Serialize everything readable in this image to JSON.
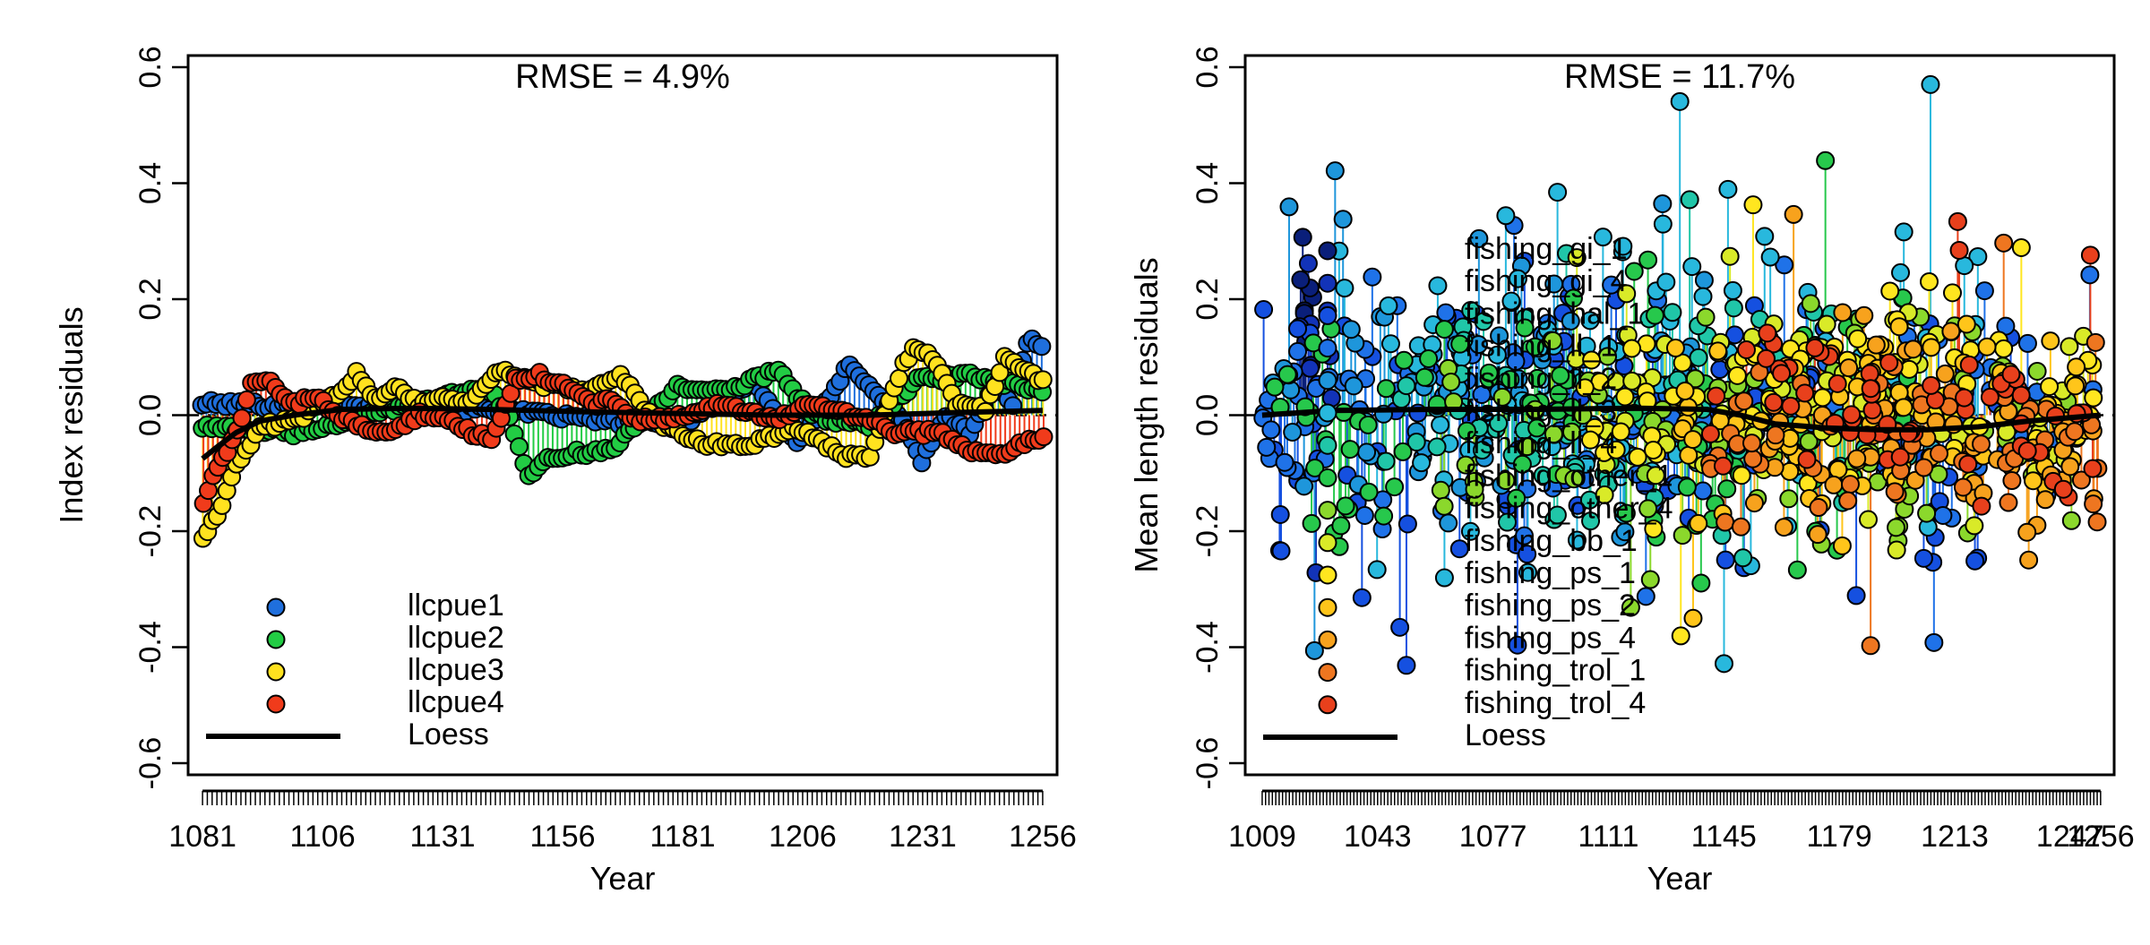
{
  "chart_data": [
    {
      "type": "scatter",
      "title": "RMSE = 4.9%",
      "xlabel": "Year",
      "ylabel": "Index residuals",
      "xlim": [
        1078,
        1259
      ],
      "ylim": [
        -0.62,
        0.62
      ],
      "x_ticks": [
        1081,
        1106,
        1131,
        1156,
        1181,
        1206,
        1231,
        1256
      ],
      "y_ticks": [
        -0.6,
        -0.4,
        -0.2,
        0.0,
        0.2,
        0.4,
        0.6
      ],
      "y_tick_labels": [
        "-0.6",
        "-0.4",
        "-0.2",
        "0.0",
        "0.2",
        "0.4",
        "0.6"
      ],
      "x_range": [
        1081,
        1256
      ],
      "minor_ticks_every": 1,
      "reference_line": 0,
      "grid": false,
      "legend_position": "bottom-left",
      "series": [
        {
          "name": "llcpue1",
          "color": "#1f6fdd",
          "keys": [
            [
              1081,
              0.02
            ],
            [
              1140,
              0.01
            ],
            [
              1180,
              -0.02
            ],
            [
              1196,
              0.06
            ],
            [
              1205,
              -0.05
            ],
            [
              1212,
              0.03
            ],
            [
              1216,
              0.09
            ],
            [
              1228,
              -0.02
            ],
            [
              1231,
              -0.08
            ],
            [
              1236,
              0.0
            ],
            [
              1241,
              -0.03
            ],
            [
              1246,
              0.05
            ],
            [
              1250,
              0.02
            ],
            [
              1253,
              0.13
            ],
            [
              1256,
              0.12
            ]
          ]
        },
        {
          "name": "llcpue2",
          "color": "#22cc44",
          "keys": [
            [
              1081,
              -0.02
            ],
            [
              1100,
              -0.03
            ],
            [
              1112,
              -0.01
            ],
            [
              1140,
              0.05
            ],
            [
              1145,
              0.0
            ],
            [
              1149,
              -0.11
            ],
            [
              1154,
              -0.07
            ],
            [
              1166,
              -0.06
            ],
            [
              1170,
              -0.03
            ],
            [
              1180,
              0.05
            ],
            [
              1190,
              0.04
            ],
            [
              1201,
              0.08
            ],
            [
              1208,
              0.0
            ],
            [
              1220,
              -0.02
            ],
            [
              1230,
              0.06
            ],
            [
              1240,
              0.07
            ],
            [
              1256,
              0.04
            ]
          ]
        },
        {
          "name": "llcpue3",
          "color": "#ffe21f",
          "keys": [
            [
              1081,
              -0.21
            ],
            [
              1084,
              -0.17
            ],
            [
              1088,
              -0.09
            ],
            [
              1093,
              -0.02
            ],
            [
              1100,
              -0.01
            ],
            [
              1108,
              0.03
            ],
            [
              1113,
              0.07
            ],
            [
              1117,
              0.03
            ],
            [
              1121,
              0.05
            ],
            [
              1126,
              0.02
            ],
            [
              1130,
              0.03
            ],
            [
              1136,
              0.02
            ],
            [
              1143,
              0.08
            ],
            [
              1148,
              0.06
            ],
            [
              1160,
              0.04
            ],
            [
              1168,
              0.07
            ],
            [
              1175,
              -0.01
            ],
            [
              1185,
              -0.05
            ],
            [
              1196,
              -0.05
            ],
            [
              1204,
              -0.02
            ],
            [
              1215,
              -0.07
            ],
            [
              1220,
              -0.07
            ],
            [
              1225,
              0.05
            ],
            [
              1229,
              0.12
            ],
            [
              1234,
              0.09
            ],
            [
              1238,
              0.02
            ],
            [
              1244,
              0.01
            ],
            [
              1248,
              0.1
            ],
            [
              1252,
              0.08
            ],
            [
              1256,
              0.06
            ]
          ]
        },
        {
          "name": "llcpue4",
          "color": "#f03b1b",
          "keys": [
            [
              1081,
              -0.15
            ],
            [
              1084,
              -0.09
            ],
            [
              1088,
              -0.03
            ],
            [
              1091,
              0.05
            ],
            [
              1095,
              0.06
            ],
            [
              1099,
              0.02
            ],
            [
              1104,
              0.03
            ],
            [
              1108,
              0.01
            ],
            [
              1113,
              -0.02
            ],
            [
              1120,
              -0.03
            ],
            [
              1126,
              0.0
            ],
            [
              1133,
              -0.01
            ],
            [
              1137,
              -0.03
            ],
            [
              1141,
              -0.04
            ],
            [
              1146,
              0.06
            ],
            [
              1151,
              0.07
            ],
            [
              1156,
              0.05
            ],
            [
              1163,
              0.02
            ],
            [
              1166,
              0.03
            ],
            [
              1170,
              -0.01
            ],
            [
              1182,
              0.0
            ],
            [
              1190,
              0.02
            ],
            [
              1200,
              -0.01
            ],
            [
              1208,
              0.02
            ],
            [
              1221,
              -0.01
            ],
            [
              1225,
              -0.03
            ],
            [
              1233,
              -0.03
            ],
            [
              1237,
              -0.04
            ],
            [
              1240,
              -0.06
            ],
            [
              1246,
              -0.07
            ],
            [
              1251,
              -0.05
            ],
            [
              1256,
              -0.04
            ]
          ]
        }
      ],
      "loess": {
        "name": "Loess",
        "color": "#000000",
        "points": [
          [
            1081,
            -0.075
          ],
          [
            1084,
            -0.055
          ],
          [
            1088,
            -0.03
          ],
          [
            1093,
            -0.01
          ],
          [
            1100,
            0.0
          ],
          [
            1110,
            0.01
          ],
          [
            1125,
            0.012
          ],
          [
            1140,
            0.01
          ],
          [
            1160,
            0.006
          ],
          [
            1180,
            0.003
          ],
          [
            1200,
            0.0
          ],
          [
            1220,
            0.0
          ],
          [
            1240,
            0.005
          ],
          [
            1256,
            0.008
          ]
        ]
      },
      "legend": [
        {
          "label": "llcpue1",
          "color": "#1f6fdd",
          "kind": "point"
        },
        {
          "label": "llcpue2",
          "color": "#22cc44",
          "kind": "point"
        },
        {
          "label": "llcpue3",
          "color": "#ffe21f",
          "kind": "point"
        },
        {
          "label": "llcpue4",
          "color": "#f03b1b",
          "kind": "point"
        },
        {
          "label": "Loess",
          "color": "#000000",
          "kind": "line"
        }
      ]
    },
    {
      "type": "scatter",
      "title": "RMSE = 11.7%",
      "xlabel": "Year",
      "ylabel": "Mean length residuals",
      "xlim": [
        1004,
        1260
      ],
      "ylim": [
        -0.62,
        0.62
      ],
      "x_ticks": [
        1009,
        1043,
        1077,
        1111,
        1145,
        1179,
        1213,
        1247,
        1256
      ],
      "x_tick_labels": [
        "1009",
        "1043",
        "1077",
        "1111",
        "1145",
        "1179",
        "1213",
        "1247",
        "1256"
      ],
      "y_ticks": [
        -0.6,
        -0.4,
        -0.2,
        0.0,
        0.2,
        0.4,
        0.6
      ],
      "y_tick_labels": [
        "-0.6",
        "-0.4",
        "-0.2",
        "0.0",
        "0.2",
        "0.4",
        "0.6"
      ],
      "x_range": [
        1009,
        1256
      ],
      "minor_ticks_every": 1,
      "reference_line": 0,
      "grid": false,
      "legend_position": "center-left",
      "series": [
        {
          "name": "fishing_gi_1",
          "color": "#0a1f7a",
          "x_range": [
            1020,
            1024
          ],
          "center": 0.2,
          "spread": 0.08
        },
        {
          "name": "fishing_gi_4",
          "color": "#1233b8",
          "x_range": [
            1020,
            1030
          ],
          "center": 0.12,
          "spread": 0.1
        },
        {
          "name": "fishing_hal_1",
          "color": "#1550e0",
          "x_range": [
            1009,
            1230
          ],
          "center": -0.03,
          "spread": 0.18
        },
        {
          "name": "fishing_ll_1",
          "color": "#1f72e8",
          "x_range": [
            1009,
            1256
          ],
          "center": 0.0,
          "spread": 0.15
        },
        {
          "name": "fishing_ll_2",
          "color": "#1e96db",
          "x_range": [
            1012,
            1140
          ],
          "center": 0.02,
          "spread": 0.14
        },
        {
          "name": "fishing_ll_3",
          "color": "#28b8dd",
          "x_range": [
            1030,
            1220
          ],
          "center": 0.05,
          "spread": 0.2
        },
        {
          "name": "fishing_ll_4",
          "color": "#20c6a8",
          "x_range": [
            1040,
            1200
          ],
          "center": 0.0,
          "spread": 0.15
        },
        {
          "name": "fishing_other_1",
          "color": "#27c84c",
          "x_range": [
            1009,
            1200
          ],
          "center": -0.02,
          "spread": 0.16
        },
        {
          "name": "fishing_other_4",
          "color": "#8bd82c",
          "x_range": [
            1060,
            1250
          ],
          "center": -0.02,
          "spread": 0.14
        },
        {
          "name": "fishing_bb_1",
          "color": "#d9ea28",
          "x_range": [
            1100,
            1256
          ],
          "center": 0.02,
          "spread": 0.15
        },
        {
          "name": "fishing_ps_1",
          "color": "#ffe61f",
          "x_range": [
            1100,
            1256
          ],
          "center": 0.02,
          "spread": 0.12
        },
        {
          "name": "fishing_ps_2",
          "color": "#ffc51a",
          "x_range": [
            1130,
            1256
          ],
          "center": 0.0,
          "spread": 0.12
        },
        {
          "name": "fishing_ps_4",
          "color": "#f7a21d",
          "x_range": [
            1150,
            1256
          ],
          "center": -0.05,
          "spread": 0.13
        },
        {
          "name": "fishing_trol_1",
          "color": "#ee7620",
          "x_range": [
            1140,
            1256
          ],
          "center": -0.02,
          "spread": 0.12
        },
        {
          "name": "fishing_trol_4",
          "color": "#e8401c",
          "x_range": [
            1140,
            1256
          ],
          "center": 0.0,
          "spread": 0.1
        }
      ],
      "loess": {
        "name": "Loess",
        "color": "#000000",
        "points": [
          [
            1009,
            0.0
          ],
          [
            1030,
            0.008
          ],
          [
            1060,
            0.01
          ],
          [
            1090,
            0.01
          ],
          [
            1120,
            0.012
          ],
          [
            1140,
            0.01
          ],
          [
            1150,
            0.0
          ],
          [
            1160,
            -0.015
          ],
          [
            1175,
            -0.022
          ],
          [
            1190,
            -0.025
          ],
          [
            1205,
            -0.025
          ],
          [
            1220,
            -0.02
          ],
          [
            1235,
            -0.01
          ],
          [
            1256,
            0.0
          ]
        ]
      },
      "legend": [
        {
          "label": "fishing_gi_1",
          "color": "#0a1f7a",
          "kind": "point"
        },
        {
          "label": "fishing_gi_4",
          "color": "#1233b8",
          "kind": "point"
        },
        {
          "label": "fishing_hal_1",
          "color": "#1550e0",
          "kind": "point"
        },
        {
          "label": "fishing_ll_1",
          "color": "#1f72e8",
          "kind": "point"
        },
        {
          "label": "fishing_ll_2",
          "color": "#1e96db",
          "kind": "point"
        },
        {
          "label": "fishing_ll_3",
          "color": "#28b8dd",
          "kind": "point"
        },
        {
          "label": "fishing_ll_4",
          "color": "#20c6a8",
          "kind": "point"
        },
        {
          "label": "fishing_other_1",
          "color": "#27c84c",
          "kind": "point"
        },
        {
          "label": "fishing_other_4",
          "color": "#8bd82c",
          "kind": "point"
        },
        {
          "label": "fishing_bb_1",
          "color": "#d9ea28",
          "kind": "point"
        },
        {
          "label": "fishing_ps_1",
          "color": "#ffe61f",
          "kind": "point"
        },
        {
          "label": "fishing_ps_2",
          "color": "#ffc51a",
          "kind": "point"
        },
        {
          "label": "fishing_ps_4",
          "color": "#f7a21d",
          "kind": "point"
        },
        {
          "label": "fishing_trol_1",
          "color": "#ee7620",
          "kind": "point"
        },
        {
          "label": "fishing_trol_4",
          "color": "#e8401c",
          "kind": "point"
        },
        {
          "label": "Loess",
          "color": "#000000",
          "kind": "line"
        }
      ]
    }
  ]
}
